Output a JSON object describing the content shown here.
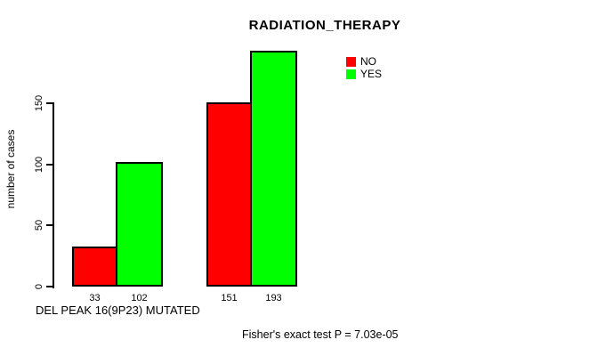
{
  "chart_data": {
    "type": "bar",
    "title": "RADIATION_THERAPY",
    "ylabel": "number of cases",
    "xlabel": "DEL PEAK 16(9P23) MUTATED",
    "annotation": "Fisher's exact test P = 7.03e-05",
    "yticks": [
      0,
      50,
      100,
      150
    ],
    "ylim": [
      0,
      193
    ],
    "grid": false,
    "legend_position": "top-right",
    "series": [
      {
        "name": "NO",
        "color": "#ff0000",
        "values": [
          33,
          151
        ]
      },
      {
        "name": "YES",
        "color": "#00ff00",
        "values": [
          102,
          193
        ]
      }
    ],
    "bar_labels": [
      "33",
      "102",
      "151",
      "193"
    ],
    "axis_color": "#000000",
    "bar_border_color": "#000000",
    "background_color": "#ffffff"
  }
}
